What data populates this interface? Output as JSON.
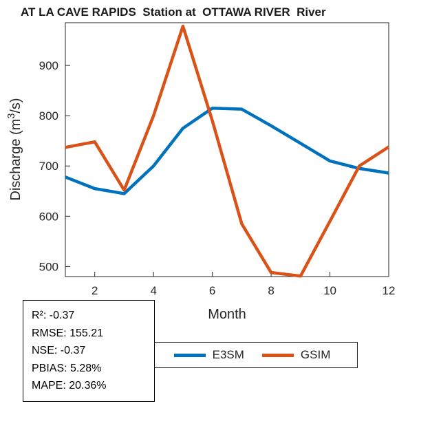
{
  "labels": {
    "ylabel_pre": "Discharge (m",
    "ylabel_sup": "3",
    "ylabel_post": "/s)"
  },
  "stats": {
    "lines": [
      "R²: -0.37",
      "RMSE: 155.21",
      "NSE: -0.37",
      "PBIAS: 5.28%",
      "MAPE: 20.36%"
    ]
  },
  "chart_data": {
    "type": "line",
    "title": "AT LA CAVE RAPIDS  Station at  OTTAWA RIVER  River",
    "xlabel": "Month",
    "ylabel": "Discharge (m³/s)",
    "x": [
      1,
      2,
      3,
      4,
      5,
      6,
      7,
      8,
      9,
      10,
      11,
      12
    ],
    "series": [
      {
        "name": "E3SM",
        "color": "#0072BD",
        "values": [
          678,
          655,
          645,
          700,
          775,
          815,
          813,
          780,
          745,
          710,
          695,
          686
        ]
      },
      {
        "name": "GSIM",
        "color": "#D95319",
        "values": [
          737,
          748,
          652,
          800,
          978,
          790,
          585,
          488,
          481,
          590,
          700,
          738
        ]
      }
    ],
    "xlim": [
      1,
      12
    ],
    "ylim": [
      480,
      985
    ],
    "xticks": [
      2,
      4,
      6,
      8,
      10,
      12
    ],
    "yticks": [
      500,
      600,
      700,
      800,
      900
    ],
    "grid": false,
    "legend_position": "below-axis",
    "axis_color": "#262626",
    "line_width": 4.5
  }
}
